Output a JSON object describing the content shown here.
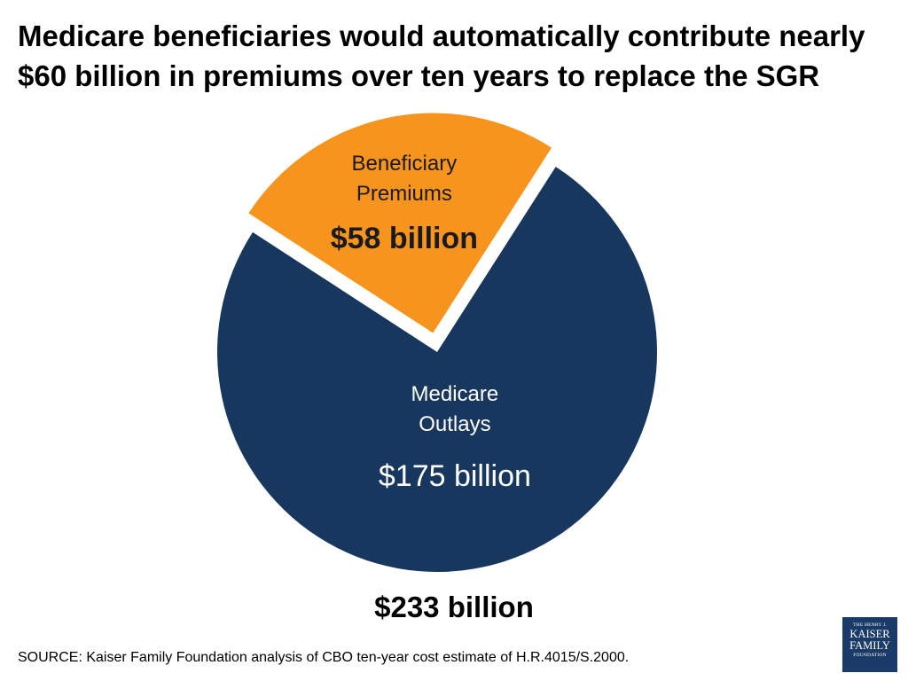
{
  "title": {
    "line1": "Medicare beneficiaries would automatically contribute nearly",
    "line2": "$60 billion in premiums over ten years to replace the SGR"
  },
  "chart_data": {
    "type": "pie",
    "total_label": "$233 billion",
    "slices": [
      {
        "label_lines": [
          "Beneficiary",
          "Premiums"
        ],
        "value_label": "$58 billion",
        "value": 58,
        "color": "#f7941d",
        "label_color": "#1a1a1a",
        "exploded": true
      },
      {
        "label_lines": [
          "Medicare",
          "Outlays"
        ],
        "value_label": "$175 billion",
        "value": 175,
        "color": "#17375e",
        "label_color": "#ffffff",
        "exploded": false
      }
    ]
  },
  "source": "SOURCE: Kaiser Family Foundation analysis of CBO ten-year cost estimate of H.R.4015/S.2000.",
  "logo": {
    "line1": "THE HENRY J.",
    "line2": "KAISER",
    "line3": "FAMILY",
    "line4": "FOUNDATION"
  }
}
